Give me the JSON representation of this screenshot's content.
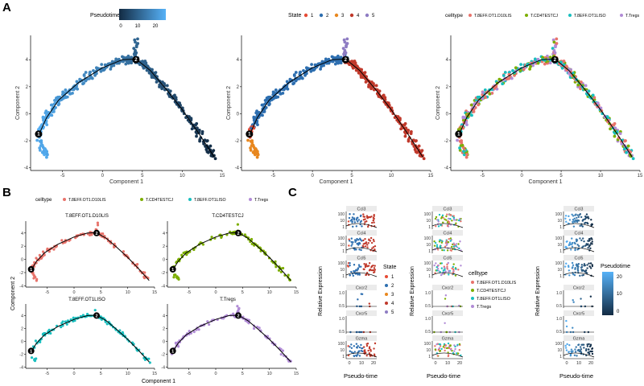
{
  "figure": {
    "panel_labels": [
      "A",
      "B",
      "C"
    ],
    "colors": {
      "state": [
        "#E64B35",
        "#2E6FB0",
        "#E8871E",
        "#C0392B",
        "#8E7CC3"
      ],
      "celltype": [
        "#E8736B",
        "#7CAE00",
        "#19BFBF",
        "#B18BD6"
      ],
      "pseudotime_low": "#132B43",
      "pseudotime_high": "#56B1F7",
      "trajectory": "#000000",
      "branch_node": "#000000"
    }
  },
  "chart_data": [
    {
      "id": "A1",
      "type": "scatter",
      "title": "",
      "xlabel": "Component 1",
      "ylabel": "Component 2",
      "xlim": [
        -9,
        15
      ],
      "ylim": [
        -4.2,
        5.8
      ],
      "xticks": [
        "-5",
        "0",
        "5",
        "10",
        "15"
      ],
      "yticks": [
        "-4",
        "-2",
        "0",
        "2",
        "4"
      ],
      "color_by": "pseudotime",
      "legend": {
        "title": "Pseudotime",
        "type": "colorbar",
        "ticks": [
          "0",
          "10",
          "20"
        ],
        "position": "top"
      },
      "branch_points": [
        {
          "label": "1",
          "x": -8.0,
          "y": -1.5
        },
        {
          "label": "2",
          "x": 4.2,
          "y": 4.0
        }
      ]
    },
    {
      "id": "A2",
      "type": "scatter",
      "title": "",
      "xlabel": "Component 1",
      "ylabel": "Component 2",
      "xlim": [
        -9,
        15
      ],
      "ylim": [
        -4.2,
        5.8
      ],
      "xticks": [
        "-5",
        "0",
        "5",
        "10",
        "15"
      ],
      "yticks": [
        "-4",
        "-2",
        "0",
        "2",
        "4"
      ],
      "color_by": "state",
      "legend": {
        "title": "State",
        "entries": [
          "1",
          "2",
          "3",
          "4",
          "5"
        ],
        "position": "top"
      },
      "branch_points": [
        {
          "label": "1",
          "x": -8.0,
          "y": -1.5
        },
        {
          "label": "2",
          "x": 4.2,
          "y": 4.0
        }
      ]
    },
    {
      "id": "A3",
      "type": "scatter",
      "title": "",
      "xlabel": "Component 1",
      "ylabel": "Component 2",
      "xlim": [
        -9,
        15
      ],
      "ylim": [
        -4.2,
        5.8
      ],
      "xticks": [
        "-5",
        "0",
        "5",
        "10",
        "15"
      ],
      "yticks": [
        "-4",
        "-2",
        "0",
        "2",
        "4"
      ],
      "color_by": "celltype",
      "legend": {
        "title": "celltype",
        "entries": [
          "T.8EFF.OT1.D10LIS",
          "T.CD4TESTCJ",
          "T.8EFF.OT1LISO",
          "T.Tregs"
        ],
        "position": "top"
      },
      "branch_points": [
        {
          "label": "1",
          "x": -8.0,
          "y": -1.5
        },
        {
          "label": "2",
          "x": 4.2,
          "y": 4.0
        }
      ]
    },
    {
      "id": "B",
      "type": "scatter",
      "xlabel": "Component 1",
      "ylabel": "Component 2",
      "xlim": [
        -9,
        15
      ],
      "ylim": [
        -4.2,
        5.8
      ],
      "xticks": [
        "-5",
        "0",
        "5",
        "10",
        "15"
      ],
      "yticks": [
        "-4",
        "-2",
        "0",
        "2",
        "4"
      ],
      "legend": {
        "title": "celltype",
        "entries": [
          "T.8EFF.OT1.D10LIS",
          "T.CD4TESTCJ",
          "T.8EFF.OT1LISO",
          "T.Tregs"
        ],
        "position": "top"
      },
      "facets": [
        "T.8EFF.OT1.D10LIS",
        "T.CD4TESTCJ",
        "T.8EFF.OT1LISO",
        "T.Tregs"
      ],
      "branch_points": [
        {
          "label": "1",
          "x": -8.0,
          "y": -1.5
        },
        {
          "label": "2",
          "x": 4.2,
          "y": 4.0
        }
      ]
    },
    {
      "id": "C",
      "type": "scatter",
      "xlabel": "Pseudo-time",
      "ylabel": "Relative Expression",
      "genes": [
        "Ccl3",
        "Ccl4",
        "Ccl5",
        "Cxcr2",
        "Cxcr5",
        "Gzma"
      ],
      "xticks": [
        "0",
        "10",
        "20"
      ],
      "yticks_high": [
        "100",
        "10",
        "1"
      ],
      "yticks_low": [
        "1.0",
        "0.5"
      ],
      "columns": [
        {
          "color_by": "state",
          "legend_title": "State",
          "legend_entries": [
            "1",
            "2",
            "3",
            "4",
            "5"
          ]
        },
        {
          "color_by": "celltype",
          "legend_title": "celltype",
          "legend_entries": [
            "T.8EFF.OT1.D10LIS",
            "T.CD4TESTCJ",
            "T.8EFF.OT1LISO",
            "T.Tregs"
          ]
        },
        {
          "color_by": "pseudotime",
          "legend_title": "Pseudotime",
          "legend_ticks": [
            "20",
            "10",
            "0"
          ]
        }
      ]
    }
  ]
}
